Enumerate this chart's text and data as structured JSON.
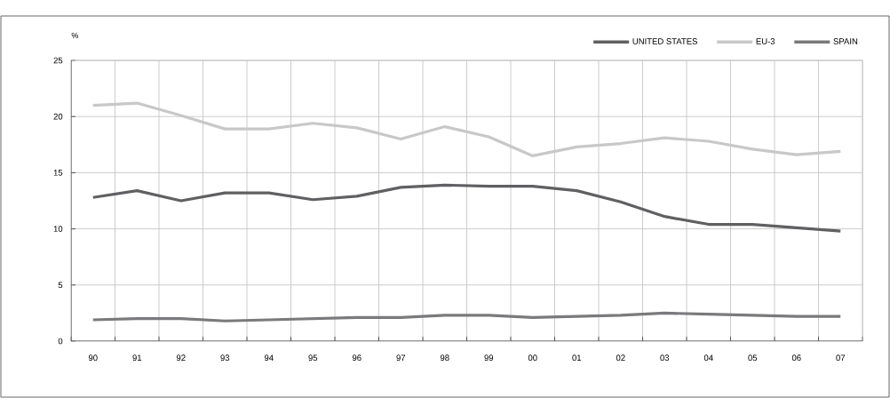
{
  "chart_data": {
    "type": "line",
    "ylabel": "%",
    "categories": [
      "90",
      "91",
      "92",
      "93",
      "94",
      "95",
      "96",
      "97",
      "98",
      "99",
      "00",
      "01",
      "02",
      "03",
      "04",
      "05",
      "06",
      "07"
    ],
    "series": [
      {
        "name": "UNITED STATES",
        "color": "#606063",
        "values": [
          12.8,
          13.4,
          12.5,
          13.2,
          13.2,
          12.6,
          12.9,
          13.7,
          13.9,
          13.8,
          13.8,
          13.4,
          12.4,
          11.1,
          10.4,
          10.4,
          10.1,
          9.8
        ]
      },
      {
        "name": "EU-3",
        "color": "#c8c8c8",
        "values": [
          21.0,
          21.2,
          20.1,
          18.9,
          18.9,
          19.4,
          19.0,
          18.0,
          19.1,
          18.2,
          16.5,
          17.3,
          17.6,
          18.1,
          17.8,
          17.1,
          16.6,
          16.9
        ]
      },
      {
        "name": "SPAIN",
        "color": "#7a7a7d",
        "values": [
          1.9,
          2.0,
          2.0,
          1.8,
          1.9,
          2.0,
          2.1,
          2.1,
          2.3,
          2.3,
          2.1,
          2.2,
          2.3,
          2.5,
          2.4,
          2.3,
          2.2,
          2.2
        ]
      }
    ],
    "ylim": [
      0,
      25
    ],
    "yticks": [
      0,
      5,
      10,
      15,
      20,
      25
    ],
    "grid": true,
    "legend": "top right",
    "marker": "none",
    "line_style": "solid"
  }
}
